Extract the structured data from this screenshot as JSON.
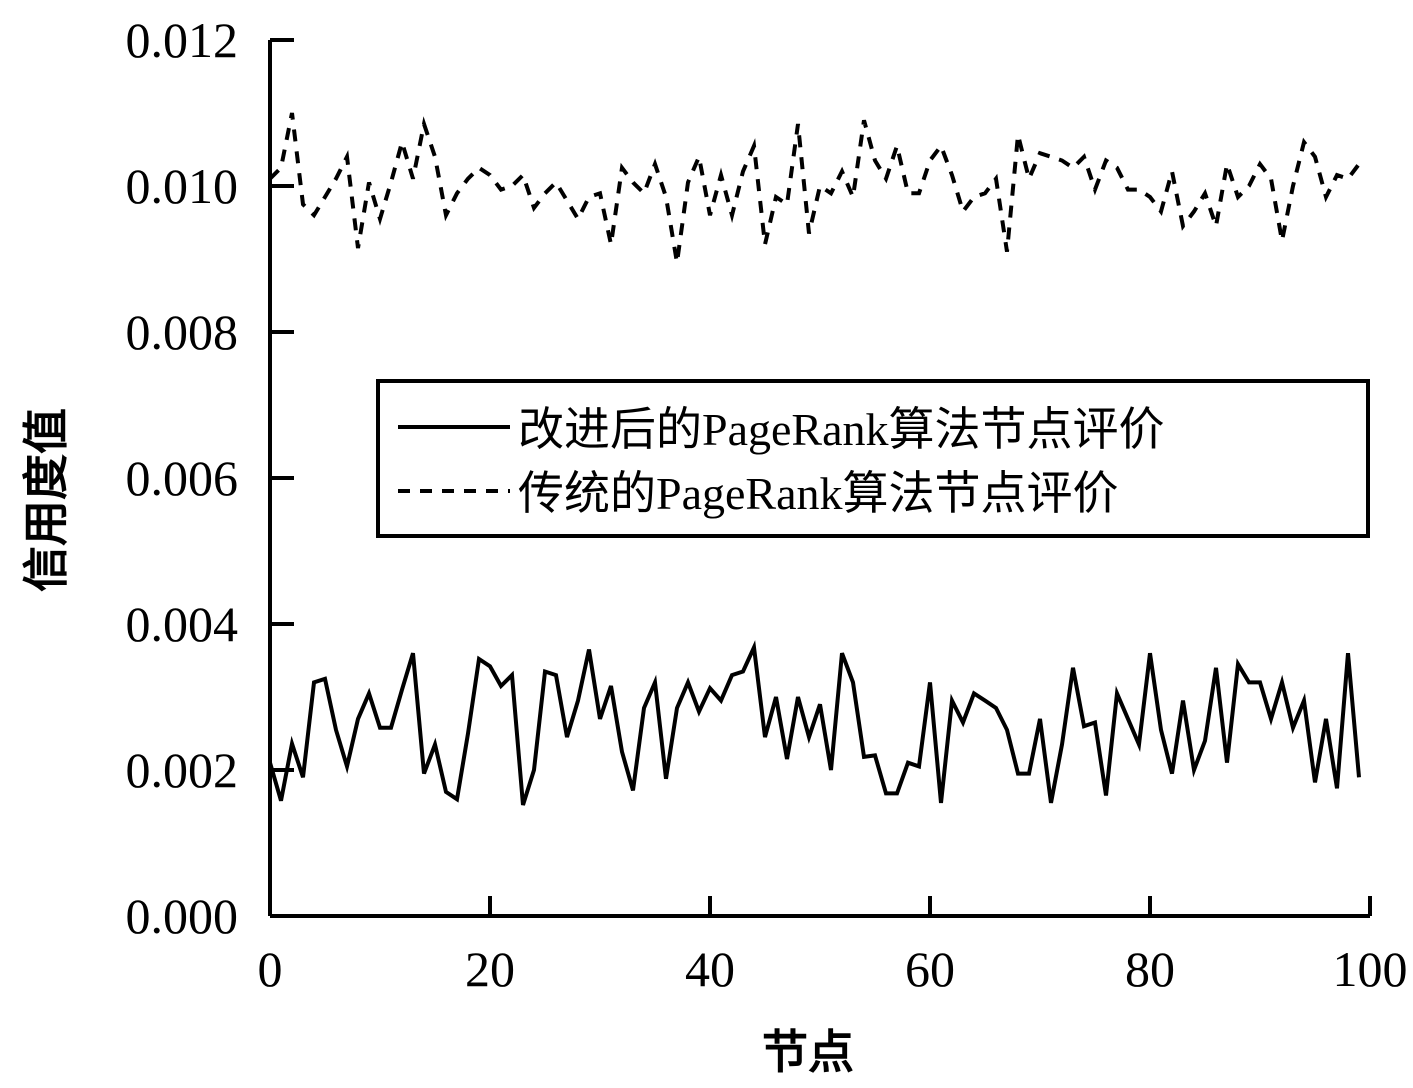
{
  "chart_data": {
    "type": "line",
    "title": "",
    "xlabel": "节点",
    "ylabel": "信用度值",
    "xlim": [
      0,
      100
    ],
    "ylim": [
      0,
      0.012
    ],
    "xticks": [
      "0",
      "20",
      "40",
      "60",
      "80",
      "100"
    ],
    "yticks": [
      "0.000",
      "0.002",
      "0.004",
      "0.006",
      "0.008",
      "0.010",
      "0.012"
    ],
    "xtick_values": [
      0,
      20,
      40,
      60,
      80,
      100
    ],
    "ytick_values": [
      0,
      0.002,
      0.004,
      0.006,
      0.008,
      0.01,
      0.012
    ],
    "grid": false,
    "legend_position": "center-right",
    "x": [
      0,
      1,
      2,
      3,
      4,
      5,
      6,
      7,
      8,
      9,
      10,
      11,
      12,
      13,
      14,
      15,
      16,
      17,
      18,
      19,
      20,
      21,
      22,
      23,
      24,
      25,
      26,
      27,
      28,
      29,
      30,
      31,
      32,
      33,
      34,
      35,
      36,
      37,
      38,
      39,
      40,
      41,
      42,
      43,
      44,
      45,
      46,
      47,
      48,
      49,
      50,
      51,
      52,
      53,
      54,
      55,
      56,
      57,
      58,
      59,
      60,
      61,
      62,
      63,
      64,
      65,
      66,
      67,
      68,
      69,
      70,
      71,
      72,
      73,
      74,
      75,
      76,
      77,
      78,
      79,
      80,
      81,
      82,
      83,
      84,
      85,
      86,
      87,
      88,
      89,
      90,
      91,
      92,
      93,
      94,
      95,
      96,
      97,
      98,
      99
    ],
    "series": [
      {
        "name": "改进后的PageRank算法节点评价",
        "style": "solid",
        "values": [
          0.0021,
          0.00158,
          0.00236,
          0.0019,
          0.0032,
          0.00325,
          0.00255,
          0.00205,
          0.0027,
          0.00305,
          0.00258,
          0.00258,
          0.0031,
          0.0036,
          0.00195,
          0.00235,
          0.0017,
          0.0016,
          0.0025,
          0.00352,
          0.00342,
          0.00315,
          0.0033,
          0.00152,
          0.002,
          0.00335,
          0.0033,
          0.00245,
          0.00295,
          0.00365,
          0.0027,
          0.00315,
          0.00225,
          0.00172,
          0.00285,
          0.0032,
          0.00188,
          0.00285,
          0.0032,
          0.0028,
          0.00312,
          0.00295,
          0.0033,
          0.00335,
          0.00368,
          0.00245,
          0.003,
          0.00215,
          0.003,
          0.00245,
          0.0029,
          0.002,
          0.0036,
          0.0032,
          0.00218,
          0.0022,
          0.00168,
          0.00168,
          0.0021,
          0.00205,
          0.0032,
          0.00155,
          0.00295,
          0.00265,
          0.00305,
          0.00295,
          0.00285,
          0.00255,
          0.00195,
          0.00195,
          0.0027,
          0.00155,
          0.00235,
          0.0034,
          0.0026,
          0.00265,
          0.00165,
          0.00305,
          0.0027,
          0.00235,
          0.0036,
          0.00255,
          0.00195,
          0.00295,
          0.002,
          0.0024,
          0.0034,
          0.0021,
          0.00345,
          0.0032,
          0.0032,
          0.0027,
          0.0032,
          0.00258,
          0.00295,
          0.00183,
          0.0027,
          0.00175,
          0.0036,
          0.0019
        ]
      },
      {
        "name": "传统的PageRank算法节点评价",
        "style": "dashed",
        "values": [
          0.0101,
          0.01025,
          0.011,
          0.00975,
          0.0096,
          0.00985,
          0.0101,
          0.0104,
          0.00915,
          0.01005,
          0.00955,
          0.01005,
          0.0106,
          0.0101,
          0.01085,
          0.0104,
          0.0096,
          0.0099,
          0.0101,
          0.01025,
          0.01015,
          0.00995,
          0.01,
          0.01015,
          0.0097,
          0.0099,
          0.01005,
          0.0098,
          0.00955,
          0.00985,
          0.0099,
          0.0092,
          0.01025,
          0.01005,
          0.0099,
          0.0103,
          0.00985,
          0.00895,
          0.01005,
          0.0104,
          0.0096,
          0.01015,
          0.0096,
          0.0102,
          0.01055,
          0.0092,
          0.00985,
          0.00975,
          0.01085,
          0.00935,
          0.01,
          0.0099,
          0.0102,
          0.00985,
          0.0109,
          0.01035,
          0.0101,
          0.01055,
          0.0099,
          0.0099,
          0.01035,
          0.01055,
          0.01015,
          0.00965,
          0.00985,
          0.0099,
          0.0101,
          0.0091,
          0.0107,
          0.0101,
          0.01045,
          0.0104,
          0.01035,
          0.01025,
          0.0104,
          0.00995,
          0.01035,
          0.01025,
          0.00995,
          0.00995,
          0.00985,
          0.00965,
          0.0102,
          0.00945,
          0.00965,
          0.0099,
          0.00945,
          0.0103,
          0.00985,
          0.01,
          0.0103,
          0.0101,
          0.00925,
          0.01,
          0.0106,
          0.0104,
          0.00985,
          0.01015,
          0.0101,
          0.0103
        ]
      }
    ]
  }
}
